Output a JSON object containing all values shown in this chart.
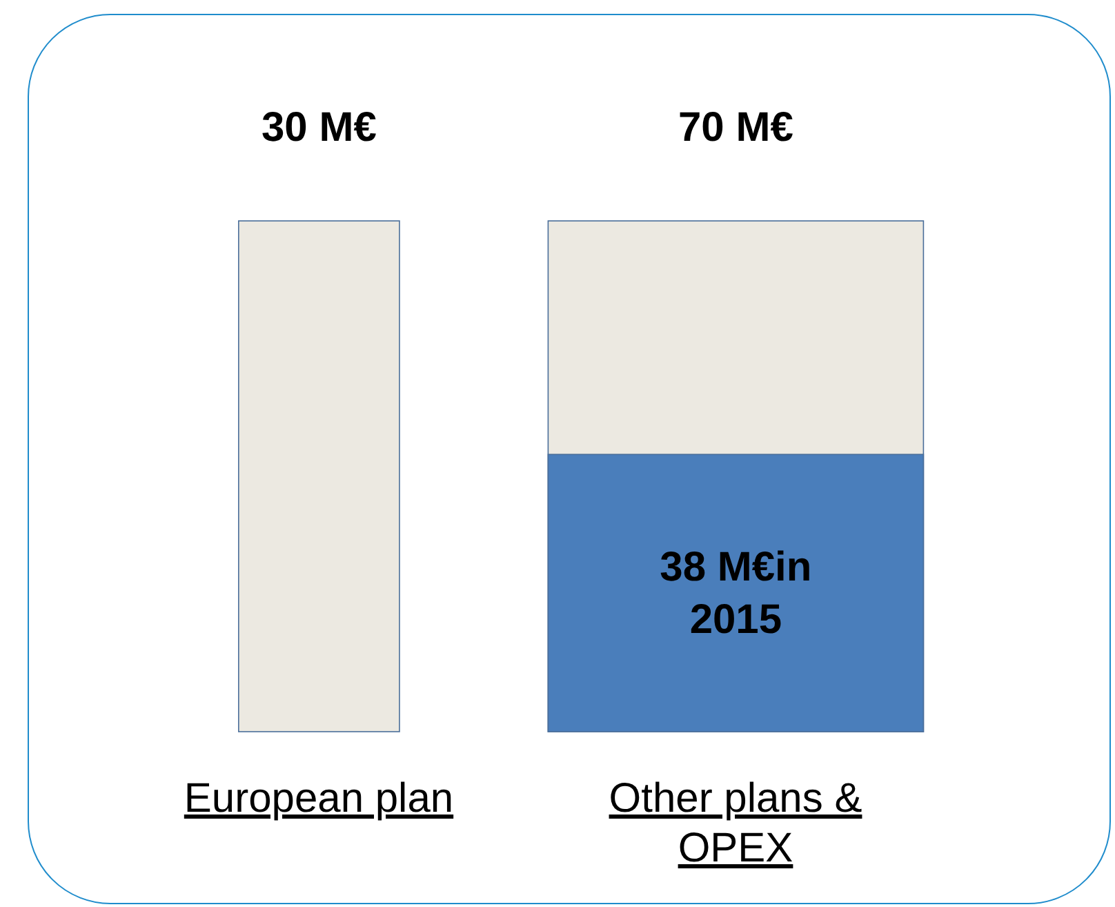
{
  "chart_data": {
    "type": "other",
    "categories": [
      "European plan",
      "Other plans & OPEX"
    ],
    "values": [
      30,
      70
    ],
    "color": "#ece9e1",
    "value_labels": [
      "30 M€",
      "70 M€"
    ],
    "series": [
      {
        "color": "#4a7ebb",
        "values": [
          null,
          38
        ],
        "value_labels": [
          null,
          "38 M€in 2015"
        ]
      }
    ]
  }
}
